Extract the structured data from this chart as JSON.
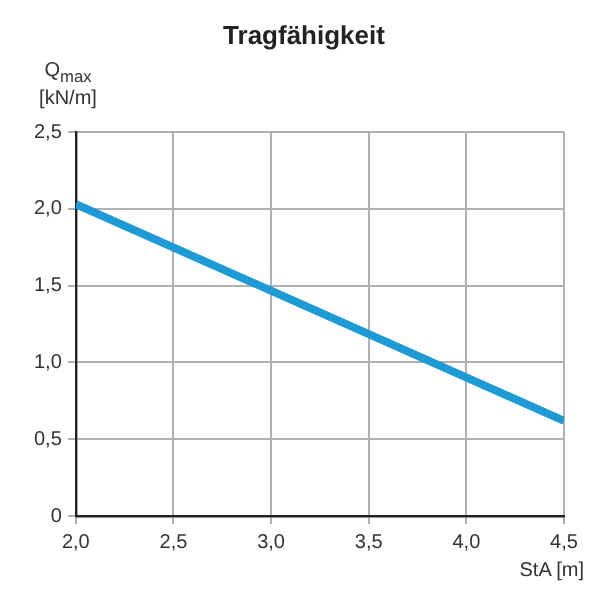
{
  "chart_data": {
    "type": "line",
    "title": "Tragfähigkeit",
    "xlabel": "StA [m]",
    "ylabel": "Q$_{max}$ [kN/m]",
    "x": [
      2.0,
      4.5
    ],
    "series": [
      {
        "color": "#1e9ad6",
        "values": [
          2.03,
          0.62
        ]
      }
    ],
    "xlim": [
      2.0,
      4.5
    ],
    "xticks": [
      {
        "value": 2.0,
        "label": "2,0"
      },
      {
        "value": 2.5,
        "label": "2,5"
      },
      {
        "value": 3.0,
        "label": "3,0"
      },
      {
        "value": 3.5,
        "label": "3,5"
      },
      {
        "value": 4.0,
        "label": "4,0"
      },
      {
        "value": 4.5,
        "label": "4,5"
      }
    ],
    "ylim": [
      0,
      2.5
    ],
    "yticks": [
      0,
      {
        "value": 0.5,
        "label": "0,5"
      },
      {
        "value": 1.0,
        "label": "1,0"
      },
      {
        "value": 1.5,
        "label": "1,5"
      },
      {
        "value": 2.0,
        "label": "2,0"
      },
      {
        "value": 2.5,
        "label": "2,5"
      }
    ],
    "grid": true,
    "legend": false,
    "marker": "none",
    "line_style": "solid"
  }
}
